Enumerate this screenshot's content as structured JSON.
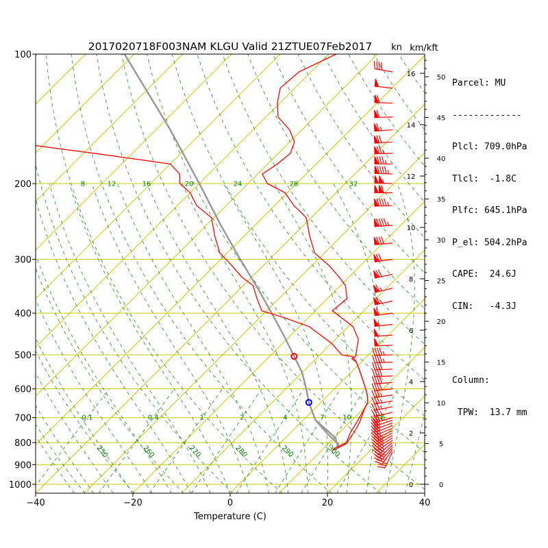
{
  "title": "2017020718F003NAM KLGU Valid 21ZTUE07Feb2017",
  "colors": {
    "temperature": "#ff0000",
    "dewpoint": "#ff0000",
    "parcel": "#999999",
    "isobar": "#c8c800",
    "isotherm": "#c8c800",
    "dry_adiabat": "#228b22",
    "moist_adiabat": "#228b22",
    "mixing_ratio": "#228b22",
    "lcl_marker": "#ff0000",
    "lfc_marker": "#0000ff",
    "wind_barb": "#ff0000"
  },
  "info": {
    "parcel": "Parcel: MU",
    "separator": "-------------",
    "plcl": "Plcl: 709.0hPa",
    "tlcl": "Tlcl:  -1.8C",
    "plfc": "Plfc: 645.1hPa",
    "pel": "P_el: 504.2hPa",
    "cape": "CAPE:  24.6J",
    "cin": "CIN:   -4.3J",
    "column": "Column:",
    "tpw": " TPW:  13.7 mm"
  },
  "chart_data": {
    "type": "skew-t log-p",
    "title": "2017020718F003NAM KLGU Valid 21ZTUE07Feb2017",
    "xlabel": "Temperature (C)",
    "ylabel": "",
    "xlim": [
      -40,
      40
    ],
    "ylim": [
      1050,
      100
    ],
    "x_ticks": [
      "−40",
      "−20",
      "0",
      "20",
      "40"
    ],
    "x_tick_values": [
      -40,
      -20,
      0,
      20,
      40
    ],
    "pressure_ticks": [
      100,
      200,
      300,
      400,
      500,
      600,
      700,
      800,
      900,
      1000
    ],
    "pressure_tick_labels": [
      "100",
      "200",
      "300",
      "400",
      "500",
      "600",
      "700",
      "800",
      "900",
      "1000"
    ],
    "grid": true,
    "temperature": {
      "pressure": [
        835,
        825,
        805,
        785,
        760,
        735,
        710,
        685,
        665,
        645,
        620,
        600,
        580,
        560,
        540,
        520,
        510,
        505,
        460,
        430,
        395,
        370,
        345,
        330,
        310,
        290,
        265,
        240,
        225,
        210,
        200,
        190,
        180,
        170,
        160,
        150,
        140,
        130,
        120,
        110,
        100
      ],
      "temp_c": [
        12.3,
        12.8,
        13.7,
        13.4,
        13.0,
        12.5,
        11.8,
        10.9,
        10.2,
        9.6,
        8.0,
        6.4,
        4.7,
        2.9,
        1.0,
        -1.0,
        -2.7,
        -2.3,
        -5.3,
        -9.0,
        -16.5,
        -16.0,
        -19.0,
        -22.0,
        -26.5,
        -32.0,
        -36.5,
        -41.0,
        -46.0,
        -50.5,
        -56.0,
        -59.0,
        -58.0,
        -57.5,
        -59.0,
        -62.5,
        -67.5,
        -70.5,
        -73.0,
        -72.5,
        -68.5
      ]
    },
    "dewpoint": {
      "pressure": [
        835,
        825,
        800,
        760,
        720,
        690,
        665,
        645,
        620,
        600,
        580,
        560,
        540,
        520,
        505,
        500,
        470,
        430,
        410,
        395,
        370,
        345,
        330,
        310,
        290,
        265,
        240,
        225,
        210,
        200,
        190,
        180,
        170,
        160
      ],
      "dewpoint_c": [
        12.3,
        12.2,
        13.5,
        12.3,
        11.5,
        10.8,
        10.2,
        9.6,
        8.0,
        6.4,
        4.7,
        2.9,
        1.0,
        -1.0,
        -2.8,
        -5.5,
        -10.0,
        -18.0,
        -25.0,
        -31.0,
        -34.5,
        -38.0,
        -42.0,
        -46.5,
        -51.5,
        -56.0,
        -60.5,
        -66.0,
        -70.0,
        -74.0,
        -76.0,
        -80.0,
        -98.0,
        -118.0
      ]
    },
    "parcel_profile": {
      "pressure": [
        820,
        780,
        740,
        709,
        670,
        645,
        600,
        550,
        504,
        450,
        400,
        350,
        300,
        250,
        200,
        150,
        100
      ],
      "temp_c": [
        12.7,
        10.3,
        6.0,
        2.5,
        -0.5,
        -2.5,
        -5.8,
        -10.0,
        -15.0,
        -21.5,
        -28.5,
        -36.5,
        -46.0,
        -57.0,
        -70.0,
        -87.0,
        -112.0
      ]
    },
    "parcel_descent": {
      "pressure": [
        709,
        760,
        810
      ],
      "temp_c": [
        2.5,
        7.5,
        12.5
      ]
    },
    "lcl": {
      "pressure": 709.0,
      "temp_c": -1.8
    },
    "lfc": {
      "pressure": 645.1
    },
    "el": {
      "pressure": 504.2
    },
    "winds": {
      "units": "kn",
      "pressure": [
        840,
        830,
        820,
        810,
        800,
        790,
        780,
        770,
        760,
        750,
        740,
        730,
        720,
        710,
        700,
        680,
        660,
        640,
        620,
        600,
        580,
        560,
        540,
        520,
        500,
        475,
        450,
        425,
        400,
        375,
        350,
        325,
        300,
        275,
        250,
        225,
        210,
        200,
        190,
        180,
        170,
        160,
        150,
        140,
        130,
        120,
        110
      ],
      "direction_deg": [
        205,
        215,
        220,
        225,
        230,
        235,
        238,
        240,
        242,
        244,
        246,
        248,
        250,
        252,
        254,
        256,
        258,
        260,
        262,
        264,
        266,
        268,
        268,
        268,
        268,
        268,
        266,
        264,
        262,
        258,
        256,
        258,
        262,
        265,
        266,
        268,
        270,
        272,
        272,
        270,
        268,
        266,
        266,
        268,
        272,
        276,
        280
      ],
      "speed_kn": [
        25,
        30,
        35,
        40,
        40,
        40,
        40,
        35,
        35,
        30,
        30,
        30,
        30,
        30,
        35,
        35,
        35,
        35,
        35,
        40,
        40,
        40,
        40,
        45,
        45,
        50,
        50,
        55,
        60,
        65,
        65,
        70,
        70,
        80,
        95,
        95,
        110,
        105,
        95,
        85,
        75,
        70,
        65,
        60,
        60,
        50,
        40
      ]
    },
    "isotherm_labels": [],
    "dry_adiabat_labels": [
      "250",
      "260",
      "270",
      "280",
      "290",
      "300"
    ],
    "dry_adiabat_values_k": [
      250,
      260,
      270,
      280,
      290,
      300
    ],
    "mixing_ratio_labels_700": [
      "0.1",
      "0.4",
      "1",
      "2",
      "4",
      "7",
      "10",
      "16"
    ],
    "mixing_ratio_values_700": [
      0.1,
      0.4,
      1,
      2,
      4,
      7,
      10,
      16
    ],
    "moist_adiabat_labels_200": [
      "8",
      "12",
      "16",
      "20",
      "24",
      "28",
      "32"
    ],
    "moist_adiabat_values_200": [
      8,
      12,
      16,
      20,
      24,
      28,
      32
    ],
    "right_axis": {
      "kn_label": "kn",
      "kft_label": "km/kft",
      "km_ticks": [
        "0",
        "2",
        "4",
        "6",
        "8",
        "10",
        "12",
        "14",
        "16"
      ],
      "km_values": [
        0,
        2,
        4,
        6,
        8,
        10,
        12,
        14,
        16
      ],
      "kft_ticks": [
        "0",
        "5",
        "10",
        "15",
        "20",
        "25",
        "30",
        "35",
        "40",
        "45",
        "50"
      ],
      "kft_values": [
        0,
        5,
        10,
        15,
        20,
        25,
        30,
        35,
        40,
        45,
        50
      ]
    }
  }
}
